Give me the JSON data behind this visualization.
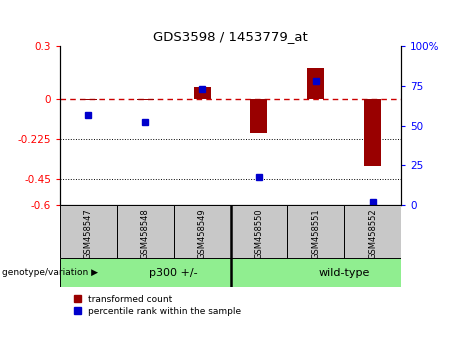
{
  "title": "GDS3598 / 1453779_at",
  "samples": [
    "GSM458547",
    "GSM458548",
    "GSM458549",
    "GSM458550",
    "GSM458551",
    "GSM458552"
  ],
  "red_values": [
    -0.005,
    -0.005,
    0.07,
    -0.19,
    0.175,
    -0.38
  ],
  "blue_values_pct": [
    57,
    52,
    73,
    18,
    78,
    2
  ],
  "ylim_left": [
    -0.6,
    0.3
  ],
  "ylim_right": [
    0,
    100
  ],
  "left_ticks": [
    0.3,
    0.0,
    -0.225,
    -0.45,
    -0.6
  ],
  "left_tick_labels": [
    "0.3",
    "0",
    "-0.225",
    "-0.45",
    "-0.6"
  ],
  "right_ticks": [
    100,
    75,
    50,
    25,
    0
  ],
  "right_tick_labels": [
    "100%",
    "75",
    "50",
    "25",
    "0"
  ],
  "hlines": [
    -0.225,
    -0.45
  ],
  "zero_line": 0.0,
  "groups": [
    {
      "label": "p300 +/-",
      "start": 0,
      "end": 3,
      "color": "#90EE90"
    },
    {
      "label": "wild-type",
      "start": 3,
      "end": 6,
      "color": "#90EE90"
    }
  ],
  "bar_color": "#990000",
  "dot_color": "#0000CC",
  "legend_red_label": "transformed count",
  "legend_blue_label": "percentile rank within the sample",
  "genotype_label": "genotype/variation",
  "sample_bg_color": "#C8C8C8",
  "group_separator": 3,
  "bar_width": 0.3
}
